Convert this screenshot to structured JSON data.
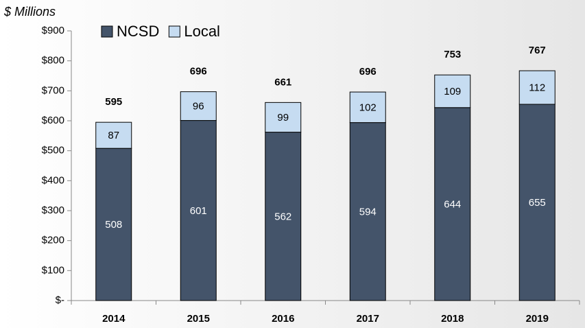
{
  "chart_data": {
    "type": "stacked_bar",
    "y_axis_label": "$ Millions",
    "categories": [
      "2014",
      "2015",
      "2016",
      "2017",
      "2018",
      "2019"
    ],
    "series": [
      {
        "name": "NCSD",
        "color": "#44546a",
        "values": [
          508,
          601,
          562,
          594,
          644,
          655
        ]
      },
      {
        "name": "Local",
        "color": "#c6dcf1",
        "values": [
          87,
          96,
          99,
          102,
          109,
          112
        ]
      }
    ],
    "totals": [
      595,
      696,
      661,
      696,
      753,
      767
    ],
    "ylim": [
      0,
      900
    ],
    "yticks": [
      {
        "value": 0,
        "label": "$-"
      },
      {
        "value": 100,
        "label": "$100"
      },
      {
        "value": 200,
        "label": "$200"
      },
      {
        "value": 300,
        "label": "$300"
      },
      {
        "value": 400,
        "label": "$400"
      },
      {
        "value": 500,
        "label": "$500"
      },
      {
        "value": 600,
        "label": "$600"
      },
      {
        "value": 700,
        "label": "$700"
      },
      {
        "value": 800,
        "label": "$800"
      },
      {
        "value": 900,
        "label": "$900"
      }
    ],
    "legend": "top"
  }
}
